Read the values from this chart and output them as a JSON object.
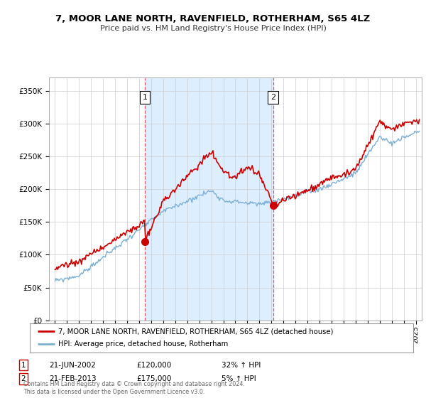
{
  "title": "7, MOOR LANE NORTH, RAVENFIELD, ROTHERHAM, S65 4LZ",
  "subtitle": "Price paid vs. HM Land Registry's House Price Index (HPI)",
  "ytick_labels": [
    "£0",
    "£50K",
    "£100K",
    "£150K",
    "£200K",
    "£250K",
    "£300K",
    "£350K"
  ],
  "yticks": [
    0,
    50000,
    100000,
    150000,
    200000,
    250000,
    300000,
    350000
  ],
  "ylim": [
    0,
    370000
  ],
  "xlim_start": 1994.5,
  "xlim_end": 2025.5,
  "xticks": [
    1995,
    1996,
    1997,
    1998,
    1999,
    2000,
    2001,
    2002,
    2003,
    2004,
    2005,
    2006,
    2007,
    2008,
    2009,
    2010,
    2011,
    2012,
    2013,
    2014,
    2015,
    2016,
    2017,
    2018,
    2019,
    2020,
    2021,
    2022,
    2023,
    2024,
    2025
  ],
  "legend_line1": "7, MOOR LANE NORTH, RAVENFIELD, ROTHERHAM, S65 4LZ (detached house)",
  "legend_line2": "HPI: Average price, detached house, Rotherham",
  "legend_line1_color": "#cc0000",
  "legend_line2_color": "#7bafd4",
  "shade_color": "#ddeeff",
  "transaction1_x": 2002.47,
  "transaction1_y": 120000,
  "transaction2_x": 2013.13,
  "transaction2_y": 175000,
  "transaction1_date": "21-JUN-2002",
  "transaction1_price": "£120,000",
  "transaction1_hpi": "32% ↑ HPI",
  "transaction2_date": "21-FEB-2013",
  "transaction2_price": "£175,000",
  "transaction2_hpi": "5% ↑ HPI",
  "footer": "Contains HM Land Registry data © Crown copyright and database right 2024.\nThis data is licensed under the Open Government Licence v3.0.",
  "bg_color": "#ffffff",
  "plot_bg_color": "#ffffff",
  "grid_color": "#cccccc"
}
